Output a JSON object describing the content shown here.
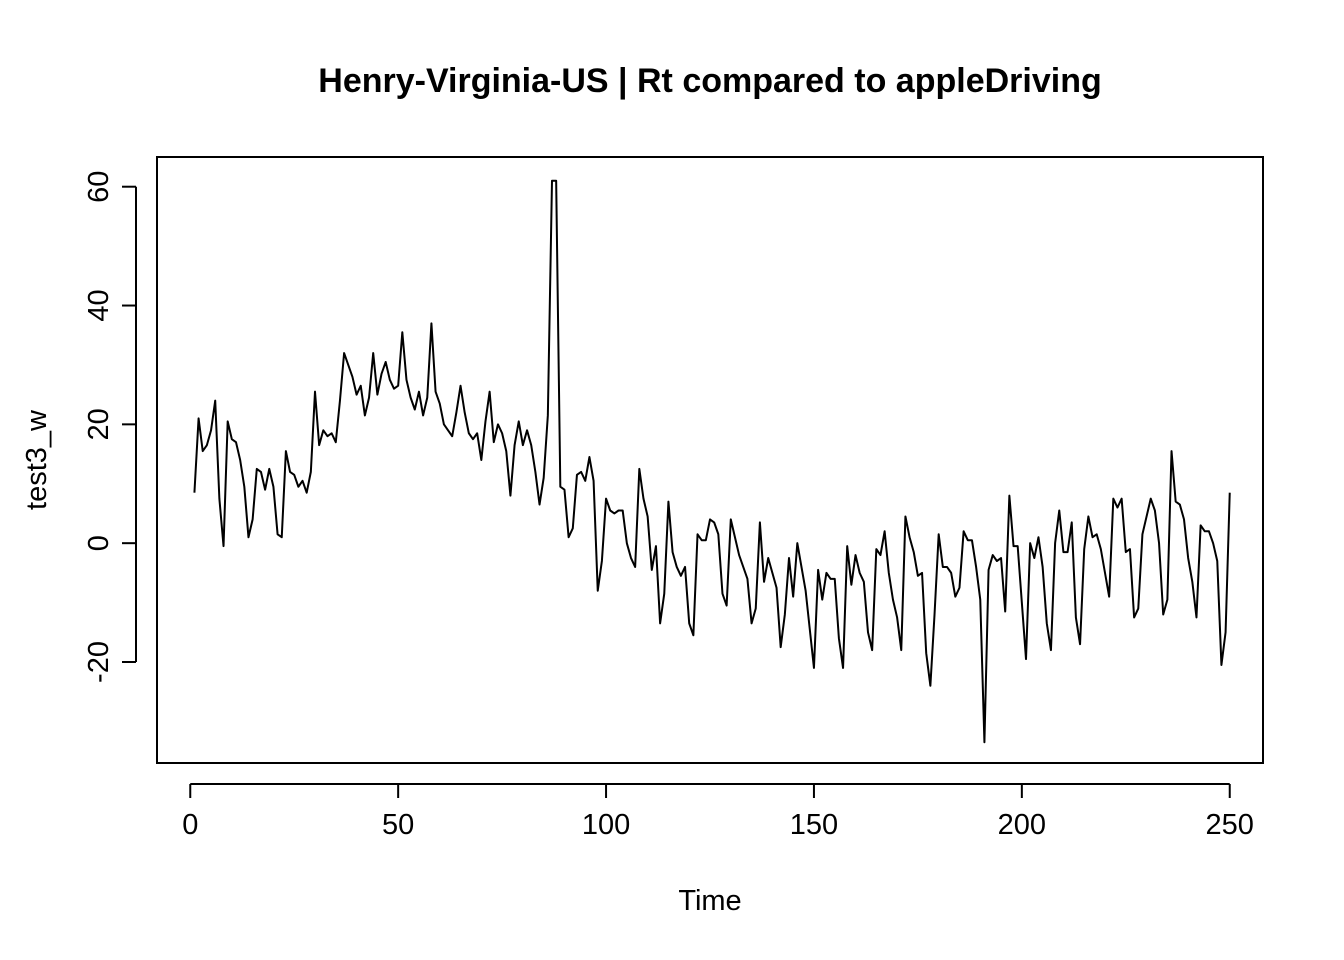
{
  "chart_data": {
    "type": "line",
    "title": "Henry-Virginia-US | Rt compared to appleDriving",
    "xlabel": "Time",
    "ylabel": "test3_w",
    "xlim": [
      -8,
      258
    ],
    "ylim": [
      -37,
      65
    ],
    "x_ticks": [
      0,
      50,
      100,
      150,
      200,
      250
    ],
    "y_ticks": [
      -20,
      0,
      20,
      40,
      60
    ],
    "grid": false,
    "series": [
      {
        "x_start": 1,
        "values": [
          8.5,
          21,
          15.5,
          16.5,
          19,
          24,
          7.5,
          -0.5,
          20.5,
          17.5,
          17,
          14,
          9.5,
          1,
          4,
          12.5,
          12,
          9,
          12.5,
          9.5,
          1.5,
          1,
          15.5,
          12,
          11.5,
          9.5,
          10.5,
          8.5,
          12,
          25.5,
          16.5,
          19,
          18,
          18.5,
          17,
          24,
          32,
          30,
          28,
          25,
          26.5,
          21.5,
          24.5,
          32,
          25,
          28.5,
          30.5,
          27.5,
          26,
          26.5,
          35.5,
          27.5,
          24.5,
          22.5,
          25.5,
          21.5,
          24.5,
          37,
          25.5,
          23.5,
          20,
          19,
          18,
          22,
          26.5,
          22,
          18.5,
          17.5,
          18.5,
          14,
          20.5,
          25.5,
          17,
          20,
          18.5,
          15.5,
          8,
          16.5,
          20.5,
          16.5,
          19,
          16.5,
          12,
          6.5,
          11,
          21.5,
          61,
          61,
          9.5,
          9,
          1,
          2.5,
          11.5,
          12,
          10.5,
          14.5,
          10.5,
          -8,
          -3,
          7.5,
          5.5,
          5,
          5.5,
          5.5,
          0,
          -2.5,
          -4,
          12.5,
          7.5,
          4.5,
          -4.5,
          -0.5,
          -13.5,
          -8.5,
          7,
          -1.5,
          -4,
          -5.5,
          -4,
          -13.5,
          -15.5,
          1.5,
          0.5,
          0.5,
          4,
          3.5,
          1.5,
          -8.5,
          -10.5,
          4,
          1,
          -2,
          -4,
          -6,
          -13.5,
          -11,
          3.5,
          -6.5,
          -2.5,
          -5,
          -7.5,
          -17.5,
          -12,
          -2.5,
          -9,
          0,
          -4,
          -8,
          -14.5,
          -21,
          -4.5,
          -9.5,
          -5,
          -6,
          -6,
          -16,
          -21,
          -0.5,
          -7,
          -2,
          -5,
          -6.5,
          -15,
          -18,
          -1,
          -2,
          2,
          -5,
          -9.5,
          -12.5,
          -18,
          4.5,
          1,
          -1.5,
          -5.5,
          -5,
          -18.5,
          -24,
          -12,
          1.5,
          -4,
          -4,
          -5,
          -9,
          -7.5,
          2,
          0.5,
          0.5,
          -4,
          -9.5,
          -33.5,
          -4.5,
          -2,
          -3,
          -2.5,
          -11.5,
          8,
          -0.5,
          -0.5,
          -10,
          -19.5,
          0,
          -2.5,
          1,
          -4,
          -13.5,
          -18,
          0,
          5.5,
          -1.5,
          -1.5,
          3.5,
          -12.5,
          -17,
          -1,
          4.5,
          1,
          1.5,
          -1,
          -5,
          -9,
          7.5,
          6,
          7.5,
          -1.5,
          -1,
          -12.5,
          -11,
          1.5,
          4.5,
          7.5,
          5.5,
          0,
          -12,
          -9.5,
          15.5,
          7,
          6.5,
          4,
          -2.5,
          -6.5,
          -12.5,
          3,
          2,
          2,
          0,
          -3,
          -20.5,
          -15,
          8.5
        ]
      }
    ]
  }
}
